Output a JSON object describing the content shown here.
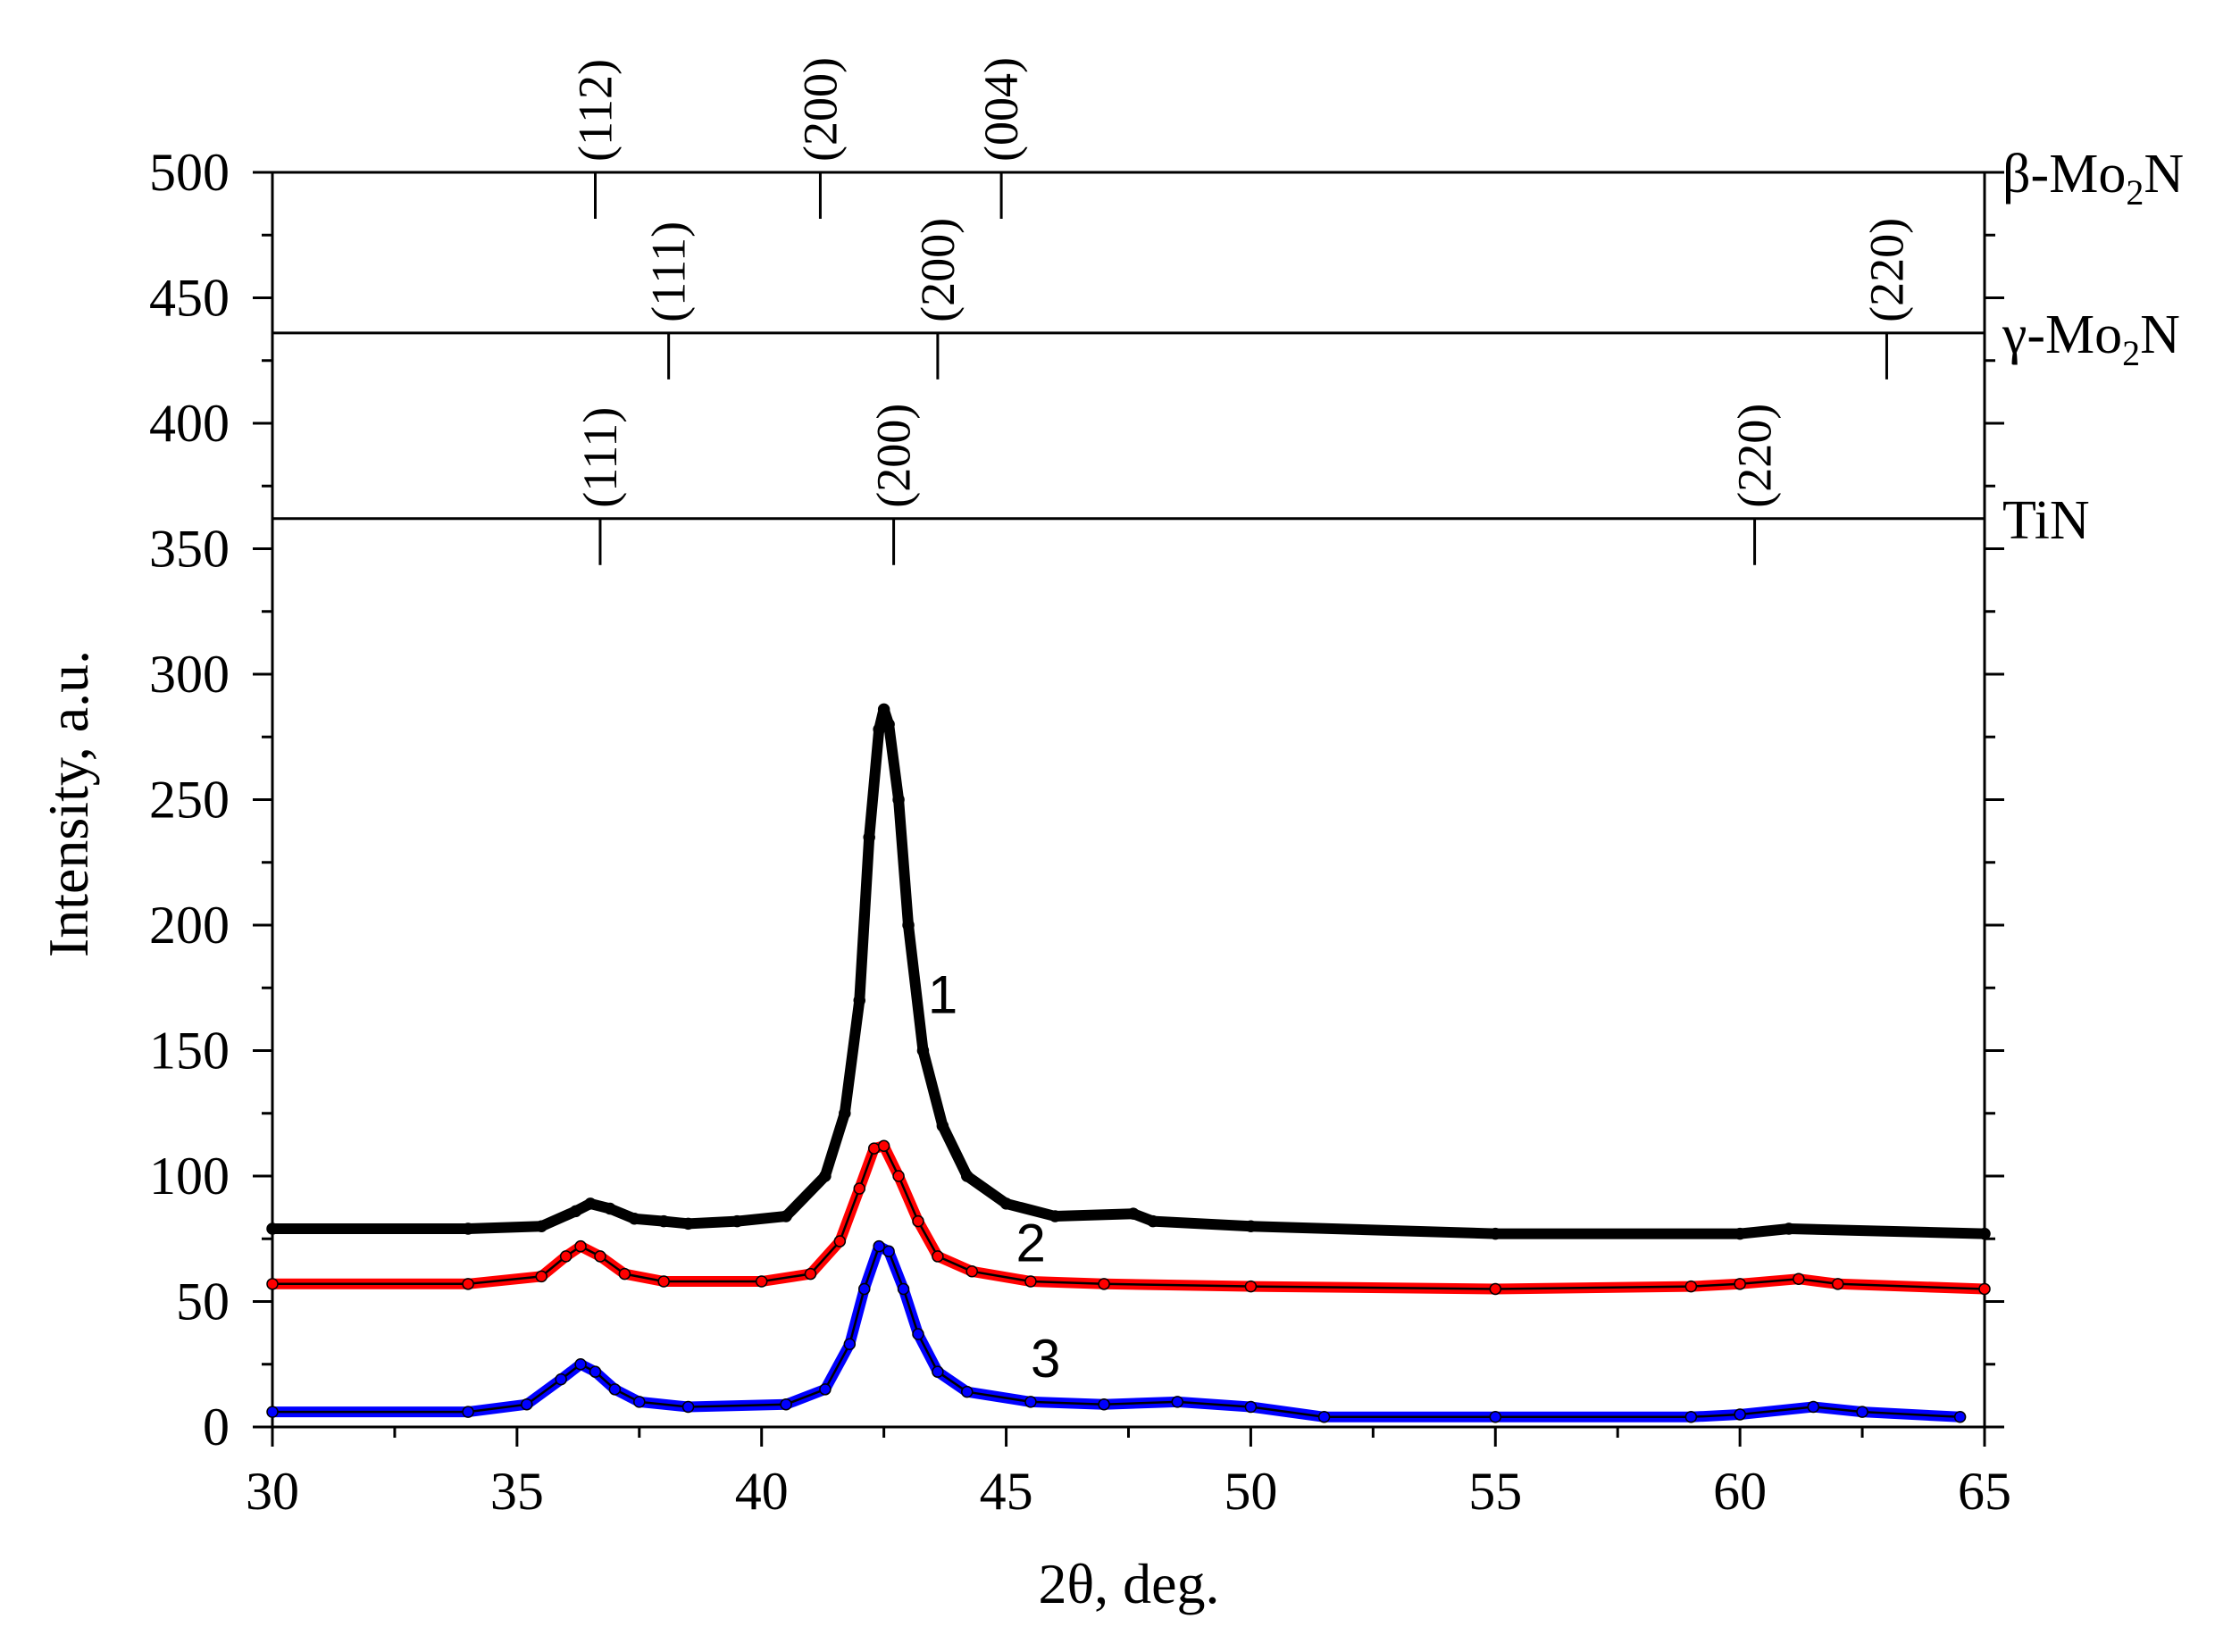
{
  "chart_data": {
    "type": "line",
    "title": "",
    "xlabel": "2θ, deg.",
    "ylabel": "Intensity, a.u.",
    "xlim": [
      30,
      65
    ],
    "ylim": [
      0,
      500
    ],
    "xticks": [
      30,
      35,
      40,
      45,
      50,
      55,
      60,
      65
    ],
    "yticks": [
      0,
      50,
      100,
      150,
      200,
      250,
      300,
      350,
      400,
      450,
      500
    ],
    "series": [
      {
        "name": "1",
        "color": "#000000",
        "x": [
          30,
          34,
          35.5,
          36.2,
          36.5,
          36.9,
          37.4,
          38,
          38.5,
          39.5,
          40.5,
          41.3,
          41.7,
          42.0,
          42.2,
          42.4,
          42.5,
          42.6,
          42.8,
          43.0,
          43.3,
          43.7,
          44.2,
          45,
          46,
          47.6,
          48,
          50,
          55,
          60,
          61,
          65
        ],
        "values": [
          79,
          79,
          80,
          86,
          89,
          87,
          83,
          82,
          81,
          82,
          84,
          100,
          125,
          170,
          235,
          278,
          286,
          280,
          250,
          200,
          150,
          120,
          100,
          89,
          84,
          85,
          82,
          80,
          77,
          77,
          79,
          77
        ]
      },
      {
        "name": "2",
        "color": "#ff0000",
        "x": [
          30,
          34,
          35.5,
          36.0,
          36.3,
          36.7,
          37.2,
          38,
          40,
          41.0,
          41.6,
          42.0,
          42.3,
          42.5,
          42.8,
          43.2,
          43.6,
          44.3,
          45.5,
          47,
          50,
          55,
          59,
          60,
          61.2,
          62,
          65
        ],
        "values": [
          57,
          57,
          60,
          68,
          72,
          68,
          61,
          58,
          58,
          61,
          74,
          95,
          111,
          112,
          100,
          82,
          68,
          62,
          58,
          57,
          56,
          55,
          56,
          57,
          59,
          57,
          55
        ]
      },
      {
        "name": "3",
        "color": "#0000ff",
        "x": [
          30,
          34,
          35.2,
          35.9,
          36.3,
          36.6,
          37.0,
          37.5,
          38.5,
          40.5,
          41.3,
          41.8,
          42.1,
          42.4,
          42.6,
          42.9,
          43.2,
          43.6,
          44.2,
          45.5,
          47,
          48.5,
          50,
          51.5,
          55,
          59,
          60,
          61.5,
          62.5,
          64.5
        ],
        "values": [
          6,
          6,
          9,
          19,
          25,
          22,
          15,
          10,
          8,
          9,
          15,
          33,
          55,
          72,
          70,
          55,
          37,
          22,
          14,
          10,
          9,
          10,
          8,
          4,
          4,
          4,
          5,
          8,
          6,
          4
        ]
      }
    ],
    "reference_phases": [
      {
        "name": "β-Mo",
        "subscript": "2",
        "suffix": "N",
        "baseline": 500,
        "peaks": [
          {
            "x": 36.6,
            "hkl": "(112)"
          },
          {
            "x": 41.2,
            "hkl": "(200)"
          },
          {
            "x": 44.9,
            "hkl": "(004)"
          }
        ]
      },
      {
        "name": "γ-Mo",
        "subscript": "2",
        "suffix": "N",
        "baseline": 436,
        "peaks": [
          {
            "x": 38.1,
            "hkl": "(111)"
          },
          {
            "x": 43.6,
            "hkl": "(200)"
          },
          {
            "x": 63.0,
            "hkl": "(220)"
          }
        ]
      },
      {
        "name": "TiN",
        "subscript": "",
        "suffix": "",
        "baseline": 362,
        "peaks": [
          {
            "x": 36.7,
            "hkl": "(111)"
          },
          {
            "x": 42.7,
            "hkl": "(200)"
          },
          {
            "x": 60.3,
            "hkl": "(220)"
          }
        ]
      }
    ],
    "curve_labels": [
      {
        "text": "1",
        "x": 43.4,
        "y": 165
      },
      {
        "text": "2",
        "x": 45.2,
        "y": 66
      },
      {
        "text": "3",
        "x": 45.5,
        "y": 20
      }
    ]
  }
}
